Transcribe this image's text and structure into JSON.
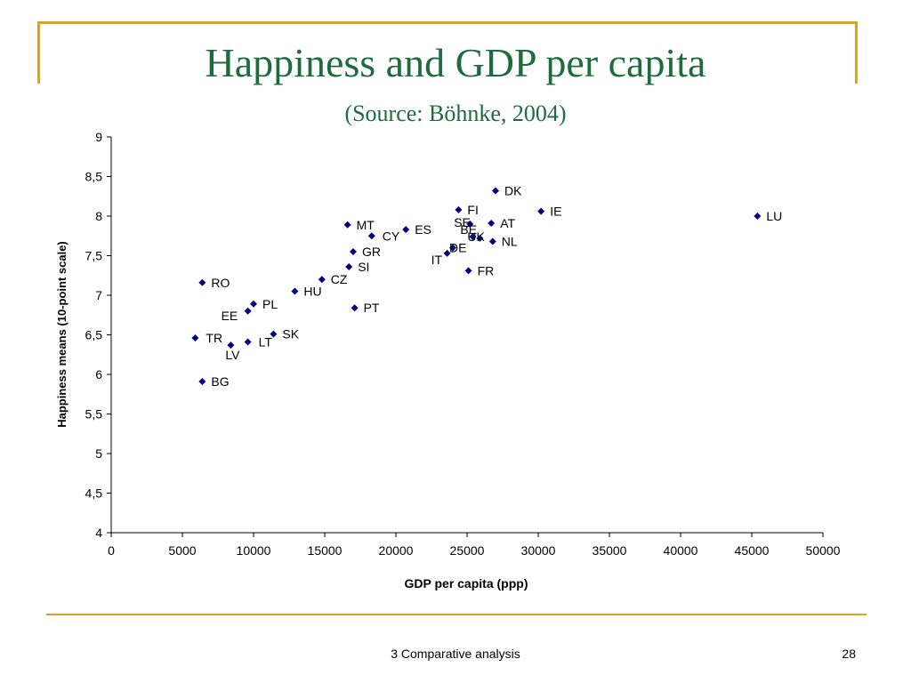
{
  "slide": {
    "title": "Happiness and GDP per capita",
    "subtitle": "(Source: Böhnke, 2004)",
    "footer": "3 Comparative analysis",
    "page_number": "28"
  },
  "colors": {
    "accent": "#d4a528",
    "title": "#1e6b3c",
    "marker": "#000080"
  },
  "chart_data": {
    "type": "scatter",
    "xlabel": "GDP per capita (ppp)",
    "ylabel": "Happiness means (10-point scale)",
    "xlim": [
      0,
      50000
    ],
    "ylim": [
      4,
      9
    ],
    "x_ticks": [
      "0",
      "5000",
      "10000",
      "15000",
      "20000",
      "25000",
      "30000",
      "35000",
      "40000",
      "45000",
      "50000"
    ],
    "y_ticks": [
      "4",
      "4,5",
      "5",
      "5,5",
      "6",
      "6,5",
      "7",
      "7,5",
      "8",
      "8,5",
      "9"
    ],
    "grid": false,
    "points": [
      {
        "label": "DK",
        "x": 27000,
        "y": 8.32
      },
      {
        "label": "FI",
        "x": 24400,
        "y": 8.08
      },
      {
        "label": "IE",
        "x": 30200,
        "y": 8.06
      },
      {
        "label": "LU",
        "x": 45400,
        "y": 8.0
      },
      {
        "label": "SE",
        "x": 25200,
        "y": 7.9
      },
      {
        "label": "AT",
        "x": 26700,
        "y": 7.91
      },
      {
        "label": "MT",
        "x": 16600,
        "y": 7.89
      },
      {
        "label": "ES",
        "x": 20700,
        "y": 7.83
      },
      {
        "label": "CY",
        "x": 18300,
        "y": 7.75
      },
      {
        "label": "BE",
        "x": 25400,
        "y": 7.74
      },
      {
        "label": "UK",
        "x": 25900,
        "y": 7.72
      },
      {
        "label": "NL",
        "x": 26800,
        "y": 7.68
      },
      {
        "label": "DE",
        "x": 24000,
        "y": 7.6
      },
      {
        "label": "IT",
        "x": 23600,
        "y": 7.53
      },
      {
        "label": "GR",
        "x": 17000,
        "y": 7.55
      },
      {
        "label": "SI",
        "x": 16700,
        "y": 7.36
      },
      {
        "label": "FR",
        "x": 25100,
        "y": 7.31
      },
      {
        "label": "CZ",
        "x": 14800,
        "y": 7.2
      },
      {
        "label": "RO",
        "x": 6400,
        "y": 7.16
      },
      {
        "label": "HU",
        "x": 12900,
        "y": 7.05
      },
      {
        "label": "PL",
        "x": 10000,
        "y": 6.89
      },
      {
        "label": "PT",
        "x": 17100,
        "y": 6.84
      },
      {
        "label": "EE",
        "x": 9600,
        "y": 6.8
      },
      {
        "label": "SK",
        "x": 11400,
        "y": 6.51
      },
      {
        "label": "TR",
        "x": 5900,
        "y": 6.46
      },
      {
        "label": "LT",
        "x": 9600,
        "y": 6.41
      },
      {
        "label": "LV",
        "x": 8400,
        "y": 6.37
      },
      {
        "label": "BG",
        "x": 6400,
        "y": 5.91
      }
    ]
  }
}
